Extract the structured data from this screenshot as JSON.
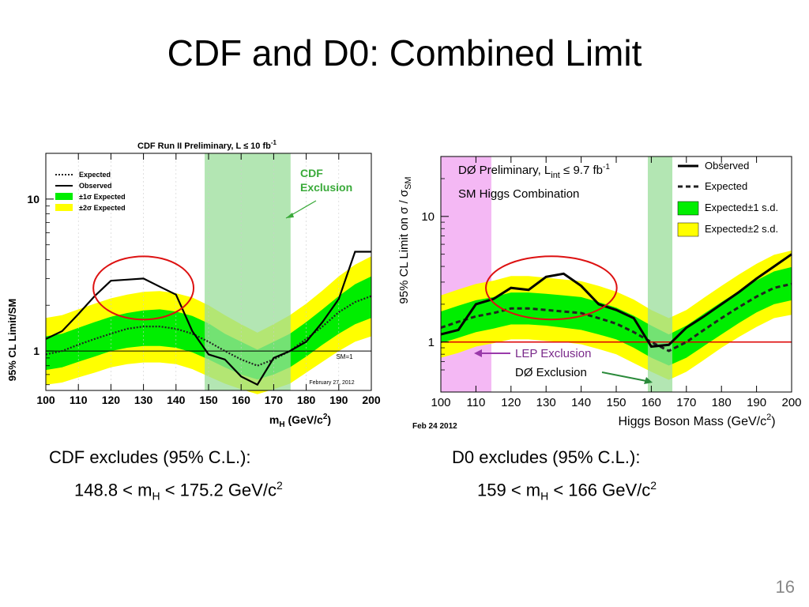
{
  "slide": {
    "title": "CDF and D0:  Combined Limit",
    "page_number": "16"
  },
  "captions": {
    "cdf": {
      "line1": "CDF excludes (95% C.L.):",
      "lo": "148.8 < m",
      "sub": "H",
      "hi": " < 175.2 GeV/c",
      "sup": "2"
    },
    "d0": {
      "line1": "D0 excludes (95% C.L.):",
      "lo": "159 < m",
      "sub": "H",
      "hi": " < 166 GeV/c",
      "sup": "2"
    }
  },
  "colors": {
    "band1": "#00ee00",
    "band2": "#ffff00",
    "exclusion": "#99dd99",
    "lep": "#f4b8f4",
    "highlight_ellipse": "#dd1111",
    "d0_sm_line": "#dd0000"
  },
  "chart_data": [
    {
      "id": "cdf",
      "type": "line",
      "title": "CDF Run II Preliminary, L ≤ 10 fb",
      "title_sup": "-1",
      "xlabel": "m",
      "xlabel_sub": "H",
      "xlabel_tail": " (GeV/c",
      "xlabel_sup": "2",
      "xlabel_end": ")",
      "ylabel": "95% CL Limit/SM",
      "yscale": "log",
      "ylim": [
        0.55,
        20
      ],
      "xlim": [
        100,
        200
      ],
      "xticks": [
        100,
        110,
        120,
        130,
        140,
        150,
        160,
        170,
        180,
        190,
        200
      ],
      "yticks": [
        {
          "v": 1,
          "label": "1"
        },
        {
          "v": 10,
          "label": "10"
        }
      ],
      "legend": [
        {
          "key": "expected",
          "label": "Expected",
          "style": "dotted"
        },
        {
          "key": "observed",
          "label": "Observed",
          "style": "solid"
        },
        {
          "key": "band1",
          "label": "±1σ Expected",
          "style": "band-green"
        },
        {
          "key": "band2",
          "label": "±2σ Expected",
          "style": "band-yellow"
        }
      ],
      "annotations": [
        "CDF",
        "Exclusion",
        "SM=1",
        "February 27, 2012"
      ],
      "exclusion": [
        148.8,
        175.2
      ],
      "x": [
        100,
        105,
        110,
        115,
        120,
        125,
        130,
        135,
        140,
        145,
        150,
        155,
        160,
        165,
        170,
        175,
        180,
        185,
        190,
        195,
        200
      ],
      "observed": [
        1.2,
        1.35,
        1.75,
        2.3,
        2.9,
        2.95,
        3.0,
        2.65,
        2.35,
        1.35,
        0.95,
        0.88,
        0.68,
        0.6,
        0.9,
        1.0,
        1.15,
        1.55,
        2.2,
        4.5,
        4.5
      ],
      "expected": [
        0.95,
        1.0,
        1.1,
        1.2,
        1.3,
        1.4,
        1.45,
        1.45,
        1.4,
        1.3,
        1.15,
        1.0,
        0.88,
        0.8,
        0.88,
        1.0,
        1.2,
        1.45,
        1.8,
        2.1,
        2.3
      ],
      "band1": {
        "lo": [
          0.75,
          0.78,
          0.85,
          0.92,
          1.0,
          1.05,
          1.08,
          1.08,
          1.05,
          0.98,
          0.88,
          0.78,
          0.7,
          0.65,
          0.7,
          0.78,
          0.92,
          1.1,
          1.3,
          1.5,
          1.65
        ],
        "hi": [
          1.25,
          1.3,
          1.42,
          1.55,
          1.68,
          1.78,
          1.85,
          1.88,
          1.82,
          1.7,
          1.52,
          1.3,
          1.15,
          1.02,
          1.15,
          1.3,
          1.55,
          1.88,
          2.3,
          2.75,
          3.1
        ]
      },
      "band2": {
        "lo": [
          0.6,
          0.62,
          0.67,
          0.72,
          0.78,
          0.82,
          0.84,
          0.84,
          0.82,
          0.76,
          0.68,
          0.61,
          0.56,
          0.52,
          0.56,
          0.61,
          0.72,
          0.85,
          1.0,
          1.15,
          1.25
        ],
        "hi": [
          1.65,
          1.72,
          1.88,
          2.05,
          2.22,
          2.35,
          2.45,
          2.48,
          2.4,
          2.25,
          2.0,
          1.72,
          1.5,
          1.32,
          1.5,
          1.72,
          2.05,
          2.5,
          3.1,
          3.7,
          4.2
        ]
      },
      "highlight": {
        "x": [
          118,
          142
        ]
      }
    },
    {
      "id": "d0",
      "type": "line",
      "title": "DØ Preliminary, L",
      "title_sub": "int",
      "title_tail": " ≤ 9.7 fb",
      "title_sup": "-1",
      "subtitle": "SM Higgs Combination",
      "xlabel": "Higgs Boson Mass (GeV/c",
      "xlabel_sup": "2",
      "xlabel_end": ")",
      "ylabel": "95% CL Limit on σ / σ",
      "ylabel_sub": "SM",
      "date": "Feb 24 2012",
      "yscale": "log",
      "ylim": [
        0.4,
        30
      ],
      "xlim": [
        100,
        200
      ],
      "xticks": [
        100,
        110,
        120,
        130,
        140,
        150,
        160,
        170,
        180,
        190,
        200
      ],
      "yticks": [
        {
          "v": 1,
          "label": "1"
        },
        {
          "v": 10,
          "label": "10"
        }
      ],
      "legend": [
        {
          "key": "observed",
          "label": "Observed",
          "style": "solid"
        },
        {
          "key": "expected",
          "label": "Expected",
          "style": "dashed"
        },
        {
          "key": "band1",
          "label": "Expected±1 s.d.",
          "style": "band-green"
        },
        {
          "key": "band2",
          "label": "Expected±2 s.d.",
          "style": "band-yellow"
        }
      ],
      "annotations": [
        "LEP Exclusion",
        "DØ Exclusion"
      ],
      "lep_exclusion": [
        100,
        114.4
      ],
      "exclusion": [
        159,
        166
      ],
      "x": [
        100,
        105,
        110,
        115,
        120,
        125,
        130,
        135,
        140,
        145,
        150,
        155,
        160,
        165,
        170,
        175,
        180,
        185,
        190,
        195,
        200
      ],
      "observed": [
        1.15,
        1.25,
        2.0,
        2.2,
        2.7,
        2.6,
        3.3,
        3.5,
        2.8,
        2.0,
        1.8,
        1.55,
        0.92,
        0.95,
        1.3,
        1.6,
        2.0,
        2.5,
        3.2,
        4.0,
        5.0
      ],
      "expected": [
        1.3,
        1.45,
        1.6,
        1.7,
        1.85,
        1.85,
        1.8,
        1.75,
        1.7,
        1.55,
        1.4,
        1.2,
        1.0,
        0.85,
        1.0,
        1.25,
        1.55,
        1.9,
        2.3,
        2.7,
        2.9
      ],
      "band1": {
        "lo": [
          0.98,
          1.08,
          1.2,
          1.28,
          1.38,
          1.38,
          1.35,
          1.3,
          1.25,
          1.15,
          1.05,
          0.9,
          0.75,
          0.65,
          0.75,
          0.93,
          1.15,
          1.42,
          1.72,
          2.0,
          2.15
        ],
        "hi": [
          1.75,
          1.95,
          2.15,
          2.28,
          2.48,
          2.48,
          2.42,
          2.35,
          2.28,
          2.08,
          1.88,
          1.62,
          1.35,
          1.15,
          1.35,
          1.68,
          2.08,
          2.55,
          3.1,
          3.65,
          3.95
        ]
      },
      "band2": {
        "lo": [
          0.75,
          0.82,
          0.92,
          0.98,
          1.05,
          1.05,
          1.02,
          1.0,
          0.96,
          0.88,
          0.8,
          0.68,
          0.58,
          0.5,
          0.58,
          0.72,
          0.9,
          1.1,
          1.32,
          1.55,
          1.65
        ],
        "hi": [
          2.35,
          2.62,
          2.9,
          3.08,
          3.35,
          3.35,
          3.25,
          3.15,
          3.05,
          2.8,
          2.52,
          2.18,
          1.8,
          1.55,
          1.8,
          2.25,
          2.8,
          3.45,
          4.2,
          4.95,
          5.35
        ]
      },
      "highlight": {
        "x": [
          116,
          147
        ]
      }
    }
  ]
}
